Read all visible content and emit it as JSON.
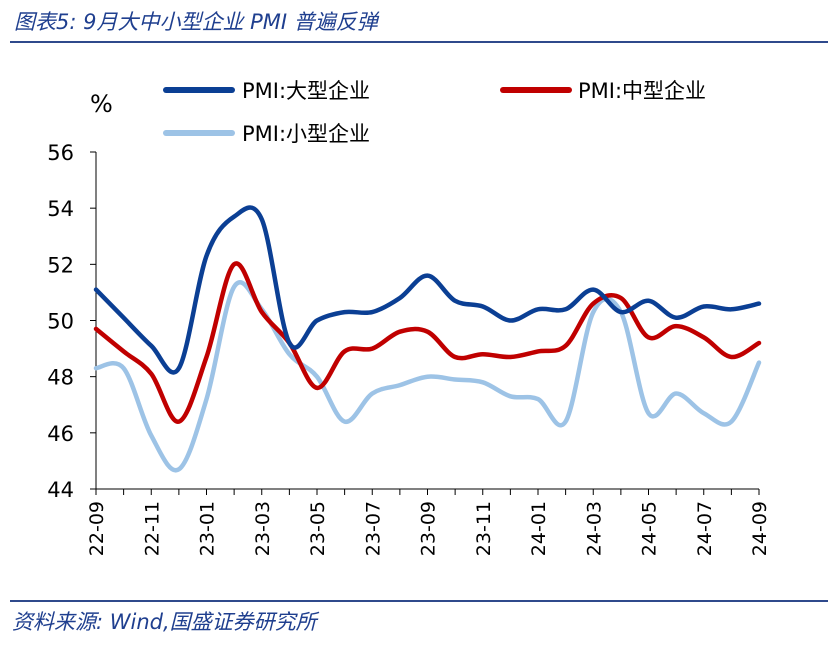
{
  "figure": {
    "title": "图表5:  9月大中小型企业 PMI 普遍反弹",
    "source": "资料来源:  Wind,国盛证券研究所"
  },
  "chart_data": {
    "type": "line",
    "unit": "%",
    "ylim": [
      44,
      56
    ],
    "yticks": [
      44,
      46,
      48,
      50,
      52,
      54,
      56
    ],
    "x": [
      "22-09",
      "22-10",
      "22-11",
      "22-12",
      "23-01",
      "23-02",
      "23-03",
      "23-04",
      "23-05",
      "23-06",
      "23-07",
      "23-08",
      "23-09",
      "23-10",
      "23-11",
      "23-12",
      "24-01",
      "24-02",
      "24-03",
      "24-04",
      "24-05",
      "24-06",
      "24-07",
      "24-08",
      "24-09"
    ],
    "xticks": [
      "22-09",
      "22-11",
      "23-01",
      "23-03",
      "23-05",
      "23-07",
      "23-09",
      "23-11",
      "24-01",
      "24-03",
      "24-05",
      "24-07",
      "24-09"
    ],
    "legend_placement": "top",
    "series": [
      {
        "name": "PMI:大型企业",
        "color": "#0b3f94",
        "values": [
          51.1,
          50.1,
          49.1,
          48.3,
          52.3,
          53.7,
          53.6,
          49.2,
          50.0,
          50.3,
          50.3,
          50.8,
          51.6,
          50.7,
          50.5,
          50.0,
          50.4,
          50.4,
          51.1,
          50.3,
          50.7,
          50.1,
          50.5,
          50.4,
          50.6
        ]
      },
      {
        "name": "PMI:中型企业",
        "color": "#c00000",
        "values": [
          49.7,
          48.9,
          48.1,
          46.4,
          48.7,
          52.0,
          50.3,
          49.2,
          47.6,
          48.9,
          49.0,
          49.6,
          49.6,
          48.7,
          48.8,
          48.7,
          48.9,
          49.1,
          50.6,
          50.8,
          49.4,
          49.8,
          49.4,
          48.7,
          49.2
        ]
      },
      {
        "name": "PMI:小型企业",
        "color": "#9dc3e6",
        "values": [
          48.3,
          48.3,
          45.9,
          44.7,
          47.2,
          51.2,
          50.4,
          48.8,
          48.0,
          46.4,
          47.4,
          47.7,
          48.0,
          47.9,
          47.8,
          47.3,
          47.2,
          46.4,
          50.3,
          50.3,
          46.7,
          47.4,
          46.7,
          46.4,
          48.5
        ]
      }
    ]
  }
}
